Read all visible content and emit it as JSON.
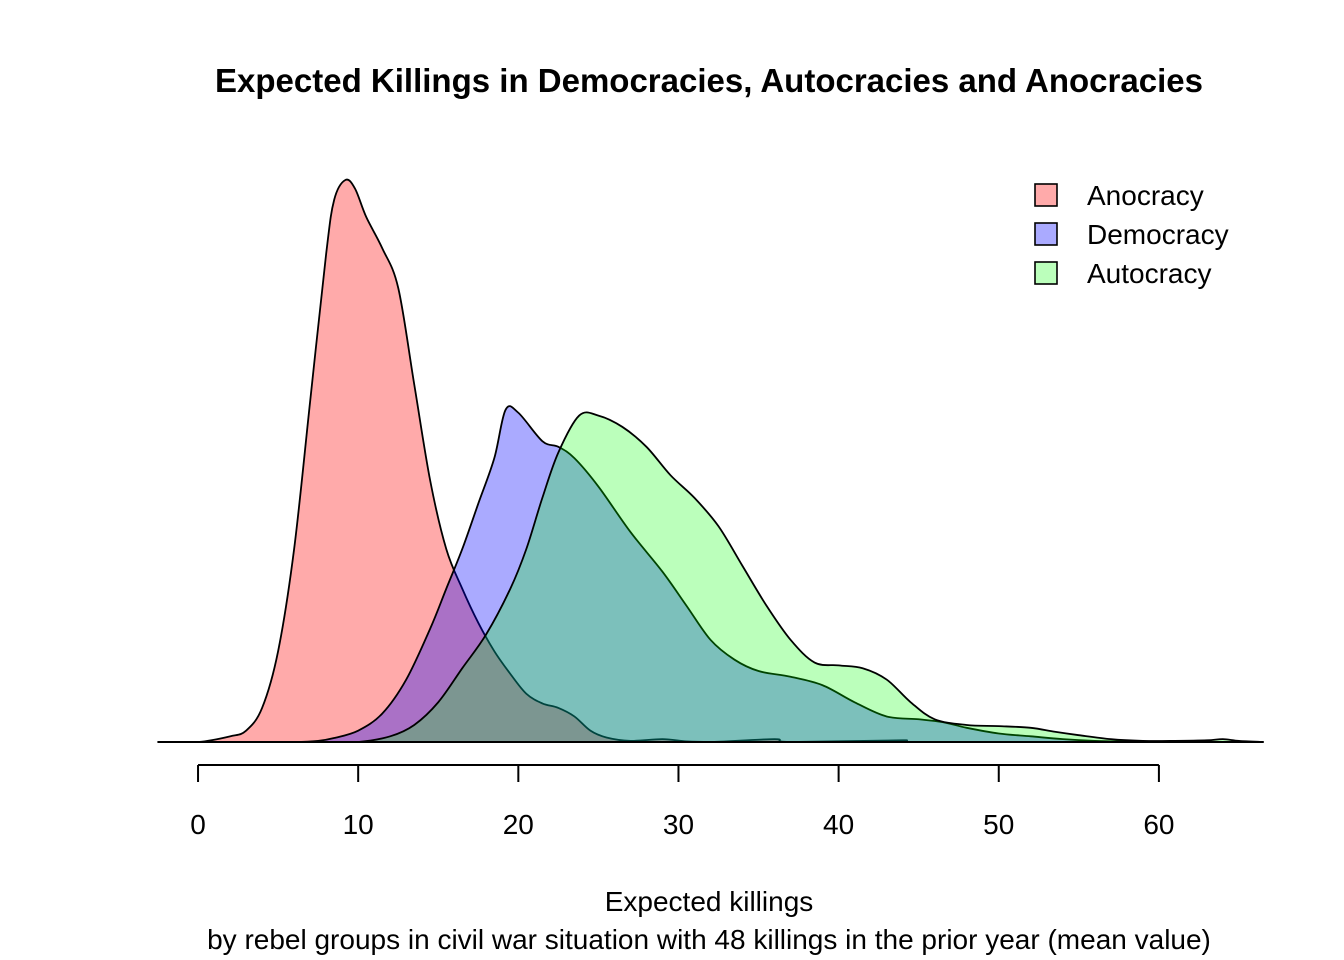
{
  "chart_data": {
    "type": "area",
    "title": "Expected Killings in Democracies, Autocracies and Anocracies",
    "xlabel": "Expected killings",
    "xlabel_line2": "by rebel groups in civil war situation with 48 killings in the prior year (mean value)",
    "ylabel": "",
    "xlim": [
      -2.5,
      66.5
    ],
    "ylim": [
      0,
      0.099
    ],
    "x_ticks": [
      0,
      10,
      20,
      30,
      40,
      50,
      60
    ],
    "y_axis_shown": false,
    "grid": false,
    "legend_position": "top-right",
    "series": [
      {
        "name": "Anocracy",
        "fill": "#FF000055",
        "stroke": "#000000",
        "points": [
          [
            -2.5,
            0
          ],
          [
            0,
            0
          ],
          [
            2,
            0.001
          ],
          [
            3,
            0.002
          ],
          [
            4,
            0.006
          ],
          [
            5,
            0.016
          ],
          [
            6,
            0.034
          ],
          [
            7,
            0.06
          ],
          [
            8,
            0.086
          ],
          [
            8.5,
            0.0955
          ],
          [
            9.2,
            0.099
          ],
          [
            9.8,
            0.0975
          ],
          [
            10.5,
            0.0925
          ],
          [
            11.5,
            0.087
          ],
          [
            12.5,
            0.08
          ],
          [
            13.5,
            0.063
          ],
          [
            14.5,
            0.046
          ],
          [
            15.5,
            0.034
          ],
          [
            16.5,
            0.027
          ],
          [
            17.5,
            0.021
          ],
          [
            18.5,
            0.016
          ],
          [
            19.5,
            0.012
          ],
          [
            20.5,
            0.0085
          ],
          [
            21.5,
            0.0068
          ],
          [
            22.5,
            0.006
          ],
          [
            23.5,
            0.0045
          ],
          [
            24.5,
            0.002
          ],
          [
            25.5,
            0.0008
          ],
          [
            27,
            0.0002
          ],
          [
            29,
            0.0005
          ],
          [
            30.5,
            0.0001
          ],
          [
            32,
            0
          ],
          [
            36,
            0.0005
          ],
          [
            37,
            0
          ],
          [
            44,
            0.0003
          ],
          [
            45,
            0
          ],
          [
            66.5,
            0
          ]
        ]
      },
      {
        "name": "Democracy",
        "fill": "#0000FF55",
        "stroke": "#000000",
        "points": [
          [
            3.5,
            0
          ],
          [
            6,
            0
          ],
          [
            7.5,
            0.0002
          ],
          [
            8.5,
            0.0007
          ],
          [
            10,
            0.002
          ],
          [
            11.5,
            0.005
          ],
          [
            13,
            0.011
          ],
          [
            14.5,
            0.02
          ],
          [
            15.5,
            0.027
          ],
          [
            16.5,
            0.034
          ],
          [
            17.5,
            0.042
          ],
          [
            18.5,
            0.05
          ],
          [
            19.2,
            0.0585
          ],
          [
            20,
            0.058
          ],
          [
            21.5,
            0.053
          ],
          [
            22.5,
            0.052
          ],
          [
            23.5,
            0.05
          ],
          [
            25,
            0.045
          ],
          [
            27,
            0.037
          ],
          [
            29,
            0.03
          ],
          [
            30.5,
            0.024
          ],
          [
            32,
            0.018
          ],
          [
            33.5,
            0.0145
          ],
          [
            35,
            0.0125
          ],
          [
            37,
            0.0115
          ],
          [
            39,
            0.01
          ],
          [
            41,
            0.007
          ],
          [
            43,
            0.0045
          ],
          [
            45,
            0.004
          ],
          [
            46.5,
            0.0035
          ],
          [
            48,
            0.0025
          ],
          [
            50,
            0.0015
          ],
          [
            52,
            0.001
          ],
          [
            54,
            0.0005
          ],
          [
            56,
            0.0002
          ],
          [
            58,
            0.0001
          ],
          [
            60,
            0
          ],
          [
            66.5,
            0
          ]
        ]
      },
      {
        "name": "Autocracy",
        "fill": "#00FF0044",
        "stroke": "#000000",
        "points": [
          [
            8,
            0
          ],
          [
            10,
            0
          ],
          [
            12,
            0.001
          ],
          [
            13.5,
            0.003
          ],
          [
            15,
            0.007
          ],
          [
            16.5,
            0.013
          ],
          [
            18,
            0.019
          ],
          [
            19.5,
            0.027
          ],
          [
            20.5,
            0.034
          ],
          [
            21.5,
            0.043
          ],
          [
            22.5,
            0.051
          ],
          [
            23.8,
            0.0575
          ],
          [
            25,
            0.0575
          ],
          [
            26.5,
            0.0555
          ],
          [
            28,
            0.052
          ],
          [
            29.5,
            0.047
          ],
          [
            31,
            0.043
          ],
          [
            32.5,
            0.038
          ],
          [
            34,
            0.031
          ],
          [
            35.5,
            0.024
          ],
          [
            37,
            0.018
          ],
          [
            38.5,
            0.014
          ],
          [
            40,
            0.0135
          ],
          [
            41.5,
            0.013
          ],
          [
            43,
            0.011
          ],
          [
            44.5,
            0.007
          ],
          [
            46,
            0.004
          ],
          [
            48,
            0.003
          ],
          [
            50,
            0.0028
          ],
          [
            52,
            0.0025
          ],
          [
            53.5,
            0.0018
          ],
          [
            55,
            0.0012
          ],
          [
            57,
            0.0005
          ],
          [
            59,
            0.0002
          ],
          [
            61,
            0.0002
          ],
          [
            63,
            0.0003
          ],
          [
            64,
            0.0005
          ],
          [
            65,
            0.0002
          ],
          [
            66.5,
            0
          ]
        ]
      }
    ],
    "legend_entries": [
      "Anocracy",
      "Democracy",
      "Autocracy"
    ]
  }
}
